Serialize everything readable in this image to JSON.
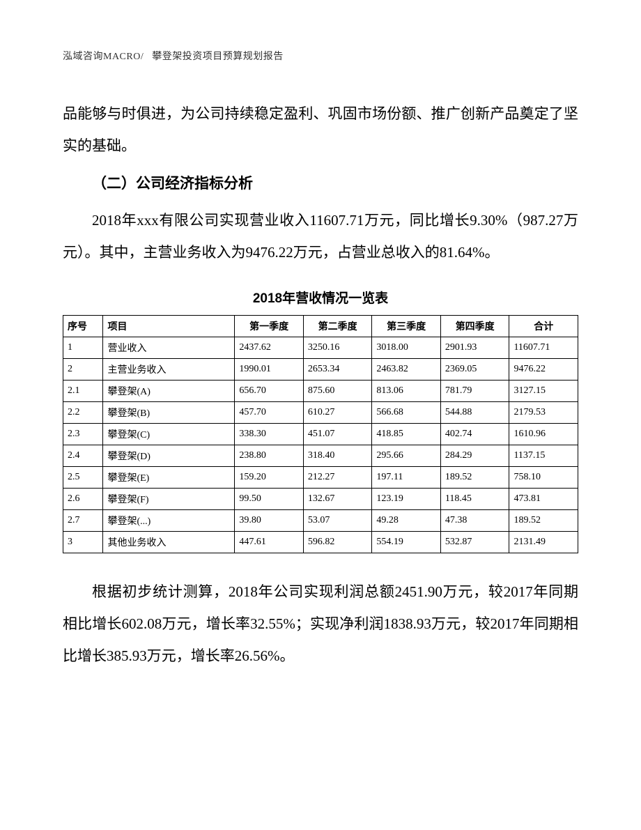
{
  "header": {
    "left": "泓域咨询MACRO/",
    "right": "攀登架投资项目预算规划报告"
  },
  "paragraphs": {
    "p1": "品能够与时俱进，为公司持续稳定盈利、巩固市场份额、推广创新产品奠定了坚实的基础。",
    "heading": "（二）公司经济指标分析",
    "p2": "2018年xxx有限公司实现营业收入11607.71万元，同比增长9.30%（987.27万元）。其中，主营业务收入为9476.22万元，占营业总收入的81.64%。",
    "p3": "根据初步统计测算，2018年公司实现利润总额2451.90万元，较2017年同期相比增长602.08万元，增长率32.55%；实现净利润1838.93万元，较2017年同期相比增长385.93万元，增长率26.56%。"
  },
  "table": {
    "title": "2018年营收情况一览表",
    "columns": [
      "序号",
      "项目",
      "第一季度",
      "第二季度",
      "第三季度",
      "第四季度",
      "合计"
    ],
    "rows": [
      [
        "1",
        "营业收入",
        "2437.62",
        "3250.16",
        "3018.00",
        "2901.93",
        "11607.71"
      ],
      [
        "2",
        "主营业务收入",
        "1990.01",
        "2653.34",
        "2463.82",
        "2369.05",
        "9476.22"
      ],
      [
        "2.1",
        "攀登架(A)",
        "656.70",
        "875.60",
        "813.06",
        "781.79",
        "3127.15"
      ],
      [
        "2.2",
        "攀登架(B)",
        "457.70",
        "610.27",
        "566.68",
        "544.88",
        "2179.53"
      ],
      [
        "2.3",
        "攀登架(C)",
        "338.30",
        "451.07",
        "418.85",
        "402.74",
        "1610.96"
      ],
      [
        "2.4",
        "攀登架(D)",
        "238.80",
        "318.40",
        "295.66",
        "284.29",
        "1137.15"
      ],
      [
        "2.5",
        "攀登架(E)",
        "159.20",
        "212.27",
        "197.11",
        "189.52",
        "758.10"
      ],
      [
        "2.6",
        "攀登架(F)",
        "99.50",
        "132.67",
        "123.19",
        "118.45",
        "473.81"
      ],
      [
        "2.7",
        "攀登架(...)",
        "39.80",
        "53.07",
        "49.28",
        "47.38",
        "189.52"
      ],
      [
        "3",
        "其他业务收入",
        "447.61",
        "596.82",
        "554.19",
        "532.87",
        "2131.49"
      ]
    ]
  },
  "styles": {
    "background_color": "#ffffff",
    "text_color": "#000000",
    "border_color": "#000000",
    "body_fontsize": 21,
    "table_fontsize": 14,
    "header_fontsize": 14,
    "line_height": 2.2
  }
}
